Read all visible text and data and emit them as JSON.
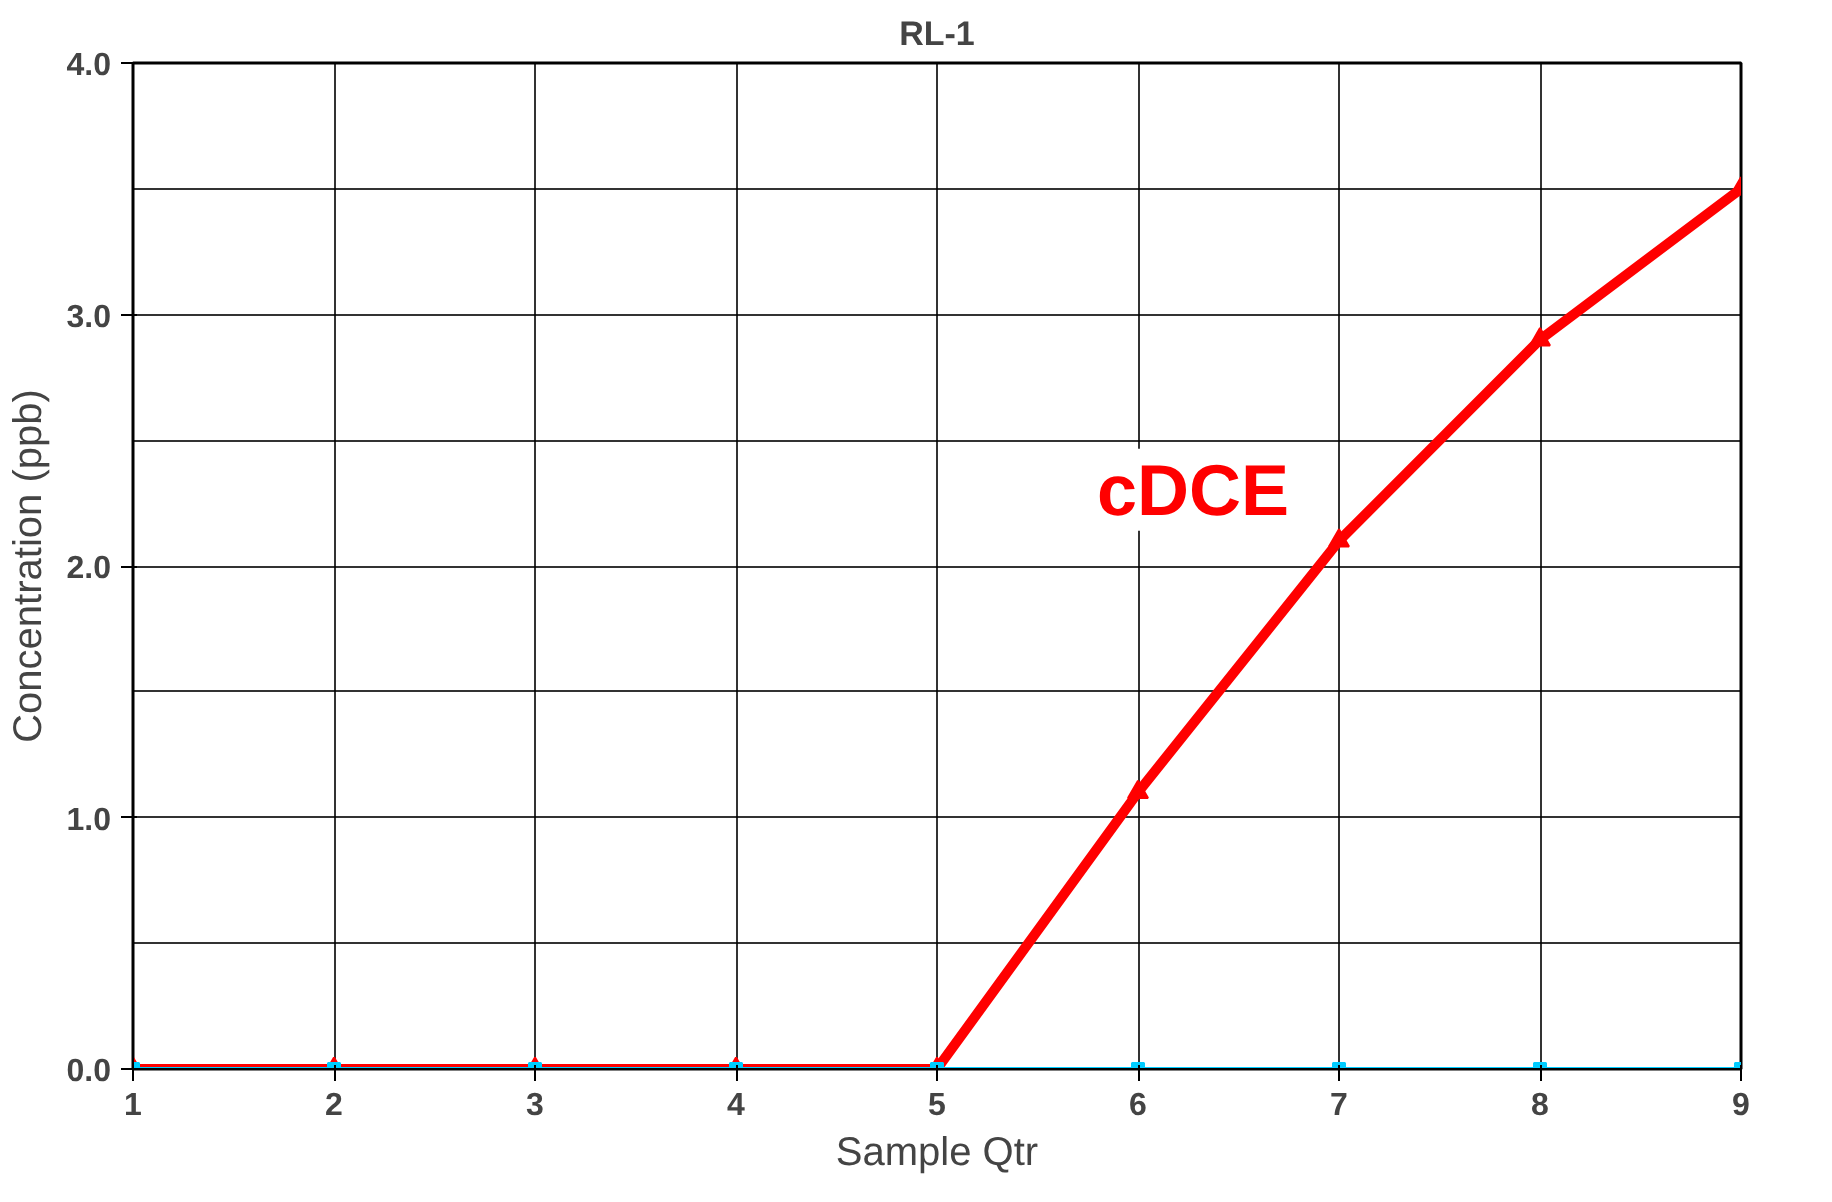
{
  "chart_data": {
    "type": "line",
    "title": "RL-1",
    "xlabel": "Sample Qtr",
    "ylabel": "Concentration (ppb)",
    "x": [
      1,
      2,
      3,
      4,
      5,
      6,
      7,
      8,
      9
    ],
    "series": [
      {
        "name": "cDCE",
        "color": "#ff0000",
        "marker": "triangle",
        "values": [
          0,
          0,
          0,
          0,
          0,
          1.1,
          2.1,
          2.9,
          3.5
        ]
      },
      {
        "color": "#00ccff",
        "marker": "square",
        "values": [
          0,
          0,
          0,
          0,
          0,
          0,
          0,
          0,
          0
        ]
      }
    ],
    "xlim": [
      1,
      9
    ],
    "xticks": [
      1,
      2,
      3,
      4,
      5,
      6,
      7,
      8,
      9
    ],
    "ylim": [
      0,
      4
    ],
    "yticks": [
      {
        "value": 0,
        "label": "0.0"
      },
      {
        "value": 1,
        "label": "1.0"
      },
      {
        "value": 2,
        "label": "2.0"
      },
      {
        "value": 3,
        "label": "3.0"
      },
      {
        "value": 4,
        "label": "4.0"
      }
    ],
    "grid": true,
    "line_style": "solid"
  }
}
